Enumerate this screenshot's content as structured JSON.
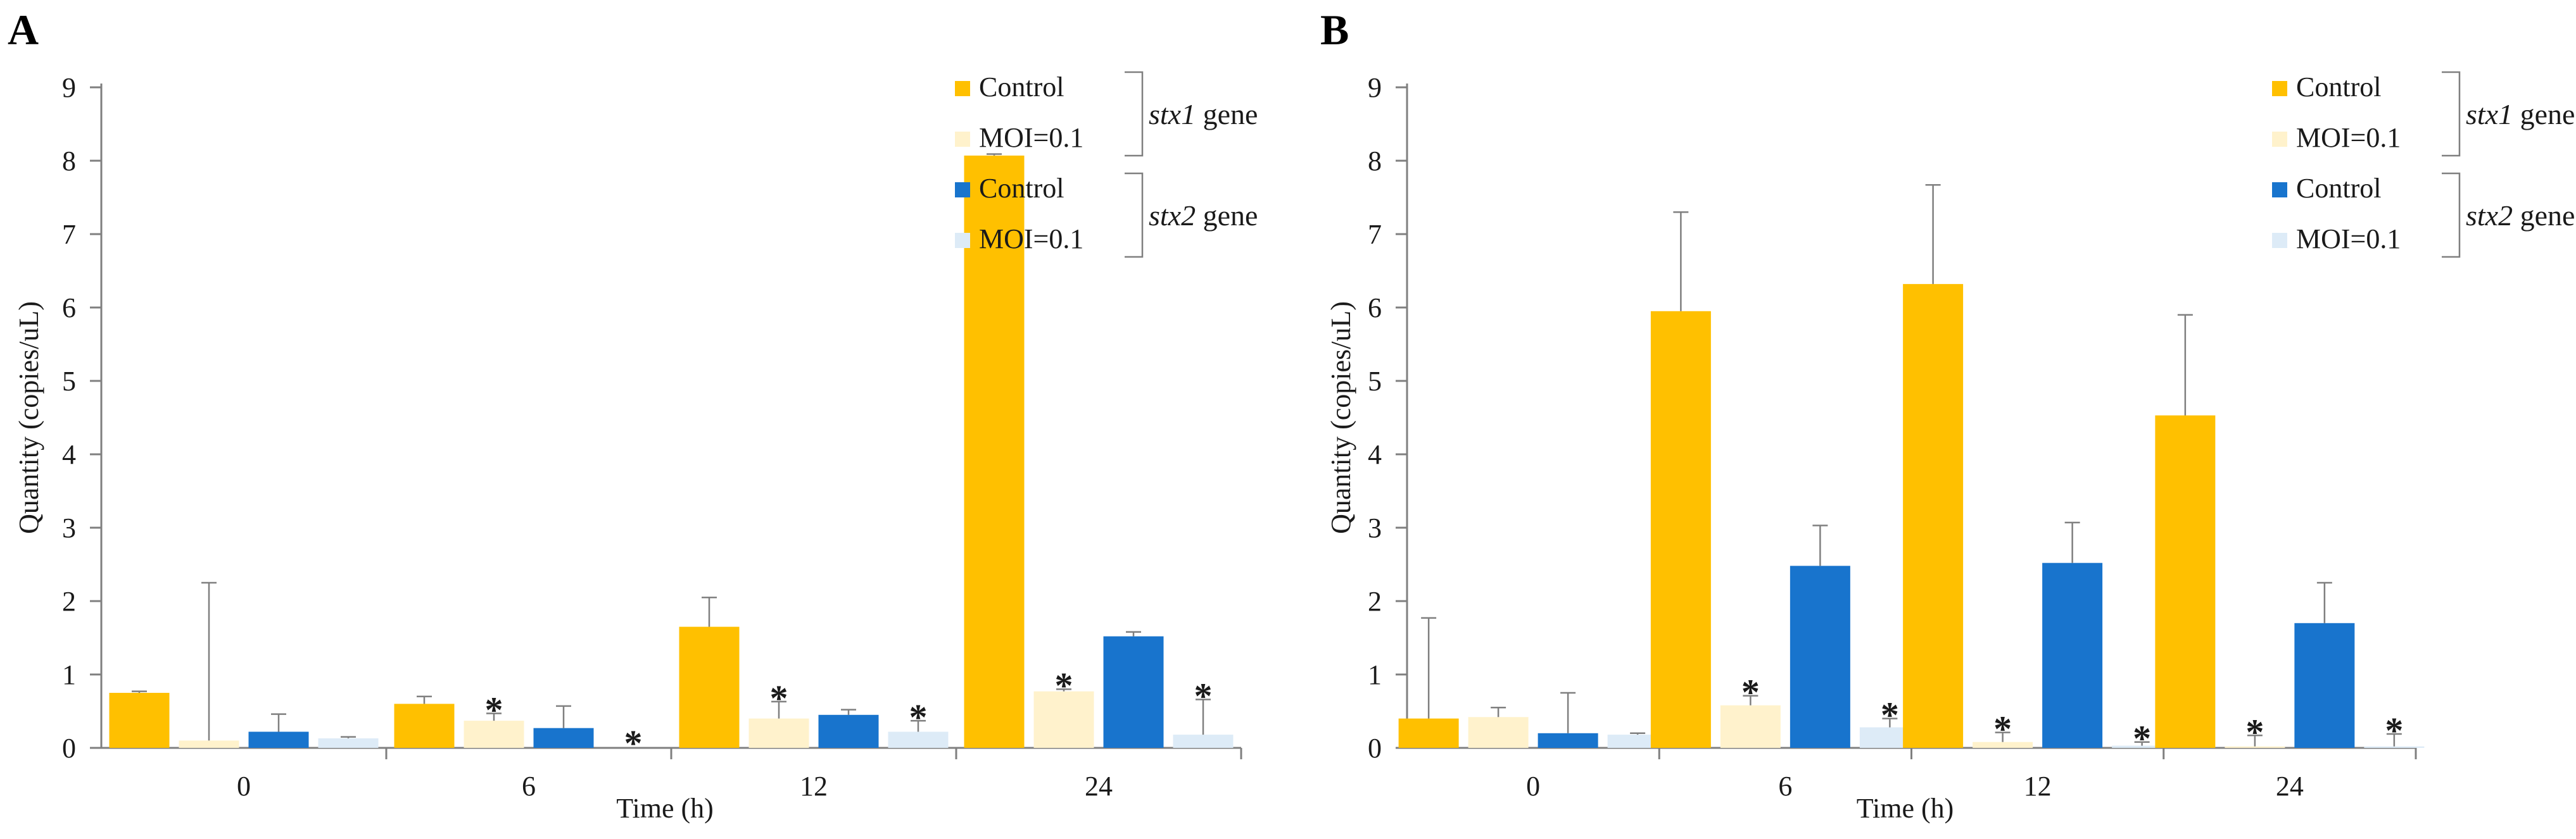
{
  "colors": {
    "stx1_control": "#FFC000",
    "stx1_moi": "#FFF2CC",
    "stx2_control": "#1874CD",
    "stx2_moi": "#DDEBF7",
    "axis": "#7f7f7f",
    "text": "#1a1a1a"
  },
  "legend": {
    "entries": [
      {
        "label": "Control",
        "series": "stx1_control"
      },
      {
        "label": "MOI=0.1",
        "series": "stx1_moi"
      },
      {
        "label": "Control",
        "series": "stx2_control"
      },
      {
        "label": "MOI=0.1",
        "series": "stx2_moi"
      }
    ],
    "groups": [
      {
        "gene": "stx1",
        "suffix": " gene"
      },
      {
        "gene": "stx2",
        "suffix": " gene"
      }
    ]
  },
  "significance_marker": "*",
  "chart_data": [
    {
      "panel": "A",
      "type": "bar",
      "xlabel": "Time (h)",
      "ylabel": "Quantity (copies/uL)",
      "ylim": [
        0,
        9
      ],
      "yticks": [
        0,
        1,
        2,
        3,
        4,
        5,
        6,
        7,
        8,
        9
      ],
      "categories": [
        "0",
        "6",
        "12",
        "24"
      ],
      "series": [
        {
          "key": "stx1_control",
          "name": "stx1 Control",
          "values": [
            0.75,
            0.6,
            1.65,
            8.07
          ],
          "errors": [
            0.02,
            0.1,
            0.4,
            0.02
          ],
          "significant": [
            false,
            false,
            false,
            false
          ]
        },
        {
          "key": "stx1_moi",
          "name": "stx1 MOI=0.1",
          "values": [
            0.1,
            0.37,
            0.4,
            0.77
          ],
          "errors": [
            2.15,
            0.1,
            0.23,
            0.03
          ],
          "significant": [
            false,
            true,
            true,
            true
          ]
        },
        {
          "key": "stx2_control",
          "name": "stx2 Control",
          "values": [
            0.22,
            0.27,
            0.45,
            1.52
          ],
          "errors": [
            0.24,
            0.3,
            0.07,
            0.06
          ],
          "significant": [
            false,
            false,
            false,
            false
          ]
        },
        {
          "key": "stx2_moi",
          "name": "stx2 MOI=0.1",
          "values": [
            0.13,
            0.0,
            0.22,
            0.18
          ],
          "errors": [
            0.02,
            0.0,
            0.15,
            0.48
          ],
          "significant": [
            false,
            true,
            true,
            true
          ]
        }
      ]
    },
    {
      "panel": "B",
      "type": "bar",
      "xlabel": "Time (h)",
      "ylabel": "Quantity (copies/uL)",
      "ylim": [
        0,
        9
      ],
      "yticks": [
        0,
        1,
        2,
        3,
        4,
        5,
        6,
        7,
        8,
        9
      ],
      "categories": [
        "0",
        "6",
        "12",
        "24"
      ],
      "series": [
        {
          "key": "stx1_control",
          "name": "stx1 Control",
          "values": [
            0.4,
            5.95,
            6.32,
            4.53
          ],
          "errors": [
            1.37,
            1.35,
            1.35,
            1.37
          ],
          "significant": [
            false,
            false,
            false,
            false
          ]
        },
        {
          "key": "stx1_moi",
          "name": "stx1 MOI=0.1",
          "values": [
            0.42,
            0.58,
            0.08,
            0.02
          ],
          "errors": [
            0.13,
            0.13,
            0.13,
            0.15
          ],
          "significant": [
            false,
            true,
            true,
            true
          ]
        },
        {
          "key": "stx2_control",
          "name": "stx2 Control",
          "values": [
            0.2,
            2.48,
            2.52,
            1.7
          ],
          "errors": [
            0.55,
            0.55,
            0.55,
            0.55
          ],
          "significant": [
            false,
            false,
            false,
            false
          ]
        },
        {
          "key": "stx2_moi",
          "name": "stx2 MOI=0.1",
          "values": [
            0.18,
            0.28,
            0.03,
            0.02
          ],
          "errors": [
            0.02,
            0.12,
            0.05,
            0.17
          ],
          "significant": [
            false,
            true,
            true,
            true
          ]
        }
      ]
    }
  ]
}
